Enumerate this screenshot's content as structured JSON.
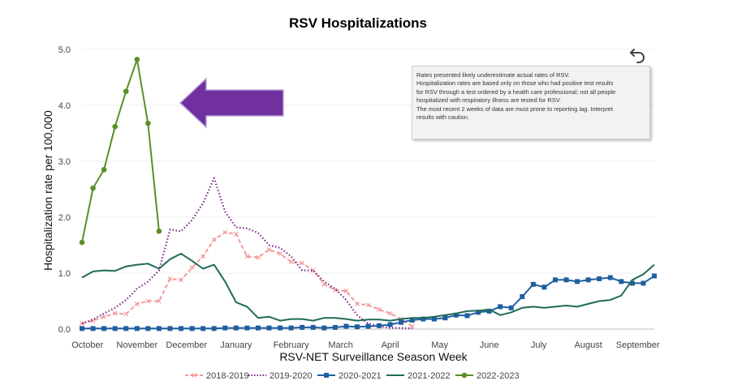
{
  "chart_data": {
    "type": "line",
    "title": "RSV Hospitalizations",
    "xlabel": "RSV-NET Surveillance Season Week",
    "ylabel": "Hospitalization rate per 100,000",
    "ylim": [
      0,
      5
    ],
    "yticks": [
      0.0,
      1.0,
      2.0,
      3.0,
      4.0,
      5.0
    ],
    "ytick_labels": [
      "0.0",
      "1.0",
      "2.0",
      "3.0",
      "4.0",
      "5.0"
    ],
    "grid": true,
    "weeks": 53,
    "month_labels": [
      {
        "label": "October",
        "week": 0.5
      },
      {
        "label": "November",
        "week": 5
      },
      {
        "label": "December",
        "week": 9.5
      },
      {
        "label": "January",
        "week": 14
      },
      {
        "label": "February",
        "week": 19
      },
      {
        "label": "March",
        "week": 23.5
      },
      {
        "label": "April",
        "week": 28
      },
      {
        "label": "May",
        "week": 32.5
      },
      {
        "label": "June",
        "week": 37
      },
      {
        "label": "July",
        "week": 41.5
      },
      {
        "label": "August",
        "week": 46
      },
      {
        "label": "September",
        "week": 50.5
      }
    ],
    "legend_position": "bottom",
    "series": [
      {
        "name": "2018-2019",
        "color": "#f29b9b",
        "style": "dashed-x",
        "x": [
          0,
          1,
          2,
          3,
          4,
          5,
          6,
          7,
          8,
          9,
          10,
          11,
          12,
          13,
          14,
          15,
          16,
          17,
          18,
          19,
          20,
          21,
          22,
          23,
          24,
          25,
          26,
          27,
          28,
          29,
          30
        ],
        "values": [
          0.1,
          0.15,
          0.22,
          0.28,
          0.27,
          0.45,
          0.5,
          0.5,
          0.9,
          0.88,
          1.1,
          1.3,
          1.6,
          1.73,
          1.7,
          1.3,
          1.28,
          1.42,
          1.35,
          1.2,
          1.18,
          1.05,
          0.8,
          0.7,
          0.68,
          0.45,
          0.43,
          0.35,
          0.28,
          0.18,
          0.05
        ]
      },
      {
        "name": "2019-2020",
        "color": "#7a2a86",
        "style": "dotted",
        "x": [
          0,
          1,
          2,
          3,
          4,
          5,
          6,
          7,
          8,
          9,
          10,
          11,
          12,
          13,
          14,
          15,
          16,
          17,
          18,
          19,
          20,
          21,
          22,
          23,
          24,
          25,
          26,
          27,
          28,
          29,
          30
        ],
        "values": [
          0.1,
          0.17,
          0.28,
          0.38,
          0.52,
          0.72,
          0.85,
          1.05,
          1.78,
          1.75,
          1.95,
          2.25,
          2.7,
          2.1,
          1.82,
          1.8,
          1.72,
          1.5,
          1.45,
          1.3,
          1.05,
          1.05,
          0.85,
          0.72,
          0.52,
          0.25,
          0.1,
          0.05,
          0.02,
          0.02,
          0.01
        ]
      },
      {
        "name": "2020-2021",
        "color": "#1f5fa0",
        "style": "solid-square",
        "x": [
          0,
          1,
          2,
          3,
          4,
          5,
          6,
          7,
          8,
          9,
          10,
          11,
          12,
          13,
          14,
          15,
          16,
          17,
          18,
          19,
          20,
          21,
          22,
          23,
          24,
          25,
          26,
          27,
          28,
          29,
          30,
          31,
          32,
          33,
          34,
          35,
          36,
          37,
          38,
          39,
          40,
          41,
          42,
          43,
          44,
          45,
          46,
          47,
          48,
          49,
          50,
          51,
          52
        ],
        "values": [
          0.01,
          0.01,
          0.01,
          0.01,
          0.01,
          0.01,
          0.01,
          0.01,
          0.01,
          0.01,
          0.01,
          0.01,
          0.01,
          0.02,
          0.02,
          0.02,
          0.02,
          0.02,
          0.02,
          0.02,
          0.03,
          0.03,
          0.02,
          0.03,
          0.05,
          0.04,
          0.05,
          0.06,
          0.08,
          0.12,
          0.16,
          0.18,
          0.18,
          0.2,
          0.25,
          0.24,
          0.3,
          0.32,
          0.4,
          0.38,
          0.58,
          0.8,
          0.75,
          0.88,
          0.88,
          0.85,
          0.88,
          0.9,
          0.92,
          0.85,
          0.82,
          0.82,
          0.95
        ]
      },
      {
        "name": "2021-2022",
        "color": "#1f6b5a",
        "style": "solid",
        "x": [
          0,
          1,
          2,
          3,
          4,
          5,
          6,
          7,
          8,
          9,
          10,
          11,
          12,
          13,
          14,
          15,
          16,
          17,
          18,
          19,
          20,
          21,
          22,
          23,
          24,
          25,
          26,
          27,
          28,
          29,
          30,
          31,
          32,
          33,
          34,
          35,
          36,
          37,
          38,
          39,
          40,
          41,
          42,
          43,
          44,
          45,
          46,
          47,
          48,
          49,
          50,
          51,
          52
        ],
        "values": [
          0.92,
          1.03,
          1.05,
          1.04,
          1.12,
          1.15,
          1.17,
          1.08,
          1.25,
          1.35,
          1.22,
          1.08,
          1.15,
          0.85,
          0.48,
          0.4,
          0.2,
          0.22,
          0.15,
          0.18,
          0.18,
          0.15,
          0.2,
          0.2,
          0.18,
          0.15,
          0.17,
          0.17,
          0.15,
          0.18,
          0.2,
          0.2,
          0.22,
          0.25,
          0.28,
          0.32,
          0.33,
          0.35,
          0.25,
          0.3,
          0.38,
          0.4,
          0.38,
          0.4,
          0.42,
          0.4,
          0.45,
          0.5,
          0.52,
          0.6,
          0.88,
          0.98,
          1.15
        ]
      },
      {
        "name": "2022-2023",
        "color": "#5a8f29",
        "style": "solid-dot",
        "x": [
          0,
          1,
          2,
          3,
          4,
          5,
          6,
          7
        ],
        "values": [
          1.55,
          2.52,
          2.85,
          3.62,
          4.25,
          4.82,
          3.68,
          1.75
        ]
      }
    ]
  },
  "note": {
    "lines": [
      "Rates presented likely underestimate actual rates of RSV.",
      "Hospitalization rates are based only on those who had positive test results",
      "for RSV through a test ordered by a health care professional; not all people",
      "hospitalized with respiratory illness are tested for RSV.",
      "The most recent 2 weeks of data are most prone to reporting lag. Interpret",
      "results with caution."
    ]
  },
  "arrow": {
    "color": "#7030a0",
    "icon": "left-arrow"
  },
  "reset_icon": "undo-icon"
}
